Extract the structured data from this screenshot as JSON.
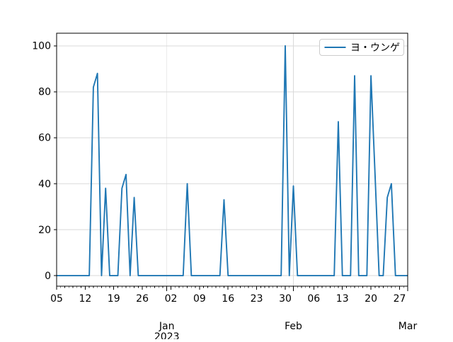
{
  "figure": {
    "background": "#ffffff",
    "title": ""
  },
  "chart_data": {
    "type": "line",
    "title": "",
    "xlabel": "",
    "ylabel": "",
    "x_axis": {
      "kind": "date",
      "start": "2022-12-05",
      "end": "2023-03-01",
      "major_tick_labels": [
        {
          "day": 0,
          "label": "05"
        },
        {
          "day": 7,
          "label": "12"
        },
        {
          "day": 14,
          "label": "19"
        },
        {
          "day": 21,
          "label": "26"
        },
        {
          "day": 28,
          "label": "02"
        },
        {
          "day": 35,
          "label": "09"
        },
        {
          "day": 42,
          "label": "16"
        },
        {
          "day": 49,
          "label": "23"
        },
        {
          "day": 56,
          "label": "30"
        },
        {
          "day": 63,
          "label": "06"
        },
        {
          "day": 70,
          "label": "13"
        },
        {
          "day": 77,
          "label": "20"
        },
        {
          "day": 84,
          "label": "27"
        }
      ],
      "month_tick_labels": [
        {
          "day": 27,
          "label": "Jan",
          "sub": "2023"
        },
        {
          "day": 58,
          "label": "Feb",
          "sub": ""
        },
        {
          "day": 86,
          "label": "Mar",
          "sub": ""
        }
      ],
      "minor_ticks": "daily"
    },
    "ylim": [
      -4.6,
      105.5
    ],
    "yticks": [
      0,
      20,
      40,
      60,
      80,
      100
    ],
    "grid": {
      "horizontal_at_yticks": true,
      "vertical_at_days": [
        27,
        58
      ],
      "color": "#d9d9d9"
    },
    "legend": {
      "position": "upper right",
      "entries": [
        "ヨ・ウンゲ"
      ]
    },
    "series": [
      {
        "name": "ヨ・ウンゲ",
        "color": "#1f77b4",
        "frequency": "daily",
        "start_date": "2022-12-05",
        "end_date": "2023-03-01",
        "baseline_value": 0,
        "nonzero_points": [
          [
            "2022-12-14",
            82
          ],
          [
            "2022-12-15",
            88
          ],
          [
            "2022-12-17",
            38
          ],
          [
            "2022-12-21",
            38
          ],
          [
            "2022-12-22",
            44
          ],
          [
            "2022-12-24",
            34
          ],
          [
            "2023-01-06",
            40
          ],
          [
            "2023-01-15",
            33
          ],
          [
            "2023-01-30",
            100
          ],
          [
            "2023-02-01",
            39
          ],
          [
            "2023-02-12",
            67
          ],
          [
            "2023-02-16",
            87
          ],
          [
            "2023-02-20",
            87
          ],
          [
            "2023-02-21",
            44
          ],
          [
            "2023-02-24",
            34
          ],
          [
            "2023-02-25",
            40
          ]
        ]
      }
    ]
  },
  "colors": {
    "line": "#1f77b4",
    "grid": "#d9d9d9",
    "spine": "#000000",
    "text": "#000000",
    "legend_border": "#cccccc",
    "background": "#ffffff"
  }
}
